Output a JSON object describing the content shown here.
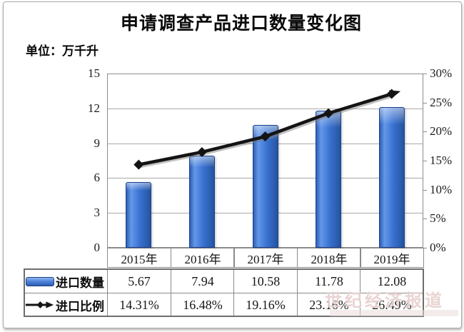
{
  "header": {
    "title": "申请调查产品进口数量变化图",
    "unit_label": "单位：万千升"
  },
  "chart_data": {
    "type": "bar+line combo",
    "title": "申请调查产品进口数量变化图",
    "categories": [
      "2015年",
      "2016年",
      "2017年",
      "2018年",
      "2019年"
    ],
    "series": [
      {
        "name": "进口数量",
        "type": "bar",
        "axis": "left",
        "values": [
          5.67,
          7.94,
          10.58,
          11.78,
          12.08
        ]
      },
      {
        "name": "进口比例",
        "type": "line",
        "axis": "right",
        "values": [
          14.31,
          16.48,
          19.16,
          23.16,
          26.49
        ]
      }
    ],
    "left_axis": {
      "min": 0,
      "max": 15,
      "ticks": [
        0,
        3,
        6,
        9,
        12,
        15
      ],
      "unit": "万千升"
    },
    "right_axis": {
      "min": 0,
      "max": 30,
      "tick_labels": [
        "0%",
        "5%",
        "10%",
        "15%",
        "20%",
        "25%",
        "30%"
      ]
    },
    "grid": true,
    "legend_position": "bottom-table"
  },
  "table": {
    "quantity_row": {
      "label": "进口数量",
      "values": [
        "5.67",
        "7.94",
        "10.58",
        "11.78",
        "12.08"
      ]
    },
    "ratio_row": {
      "label": "进口比例",
      "values": [
        "14.31%",
        "16.48%",
        "19.16%",
        "23.16%",
        "26.49%"
      ]
    }
  },
  "watermark": {
    "text": "世纪经济报道"
  },
  "colors": {
    "bar_fill": "#3a72d2",
    "bar_highlight": "#6398e8",
    "bar_edge": "#1a3e8c",
    "line": "#141414",
    "grid": "#a9a9a9",
    "plot_border": "#8c8c8c",
    "table_border": "#8a8a8a",
    "text": "#161616"
  }
}
